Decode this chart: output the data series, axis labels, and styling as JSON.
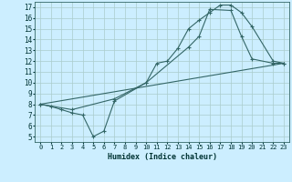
{
  "xlabel": "Humidex (Indice chaleur)",
  "bg_color": "#cceeff",
  "line_color": "#336666",
  "grid_color": "#aacccc",
  "xlim": [
    -0.5,
    23.5
  ],
  "ylim": [
    4.5,
    17.5
  ],
  "xticks": [
    0,
    1,
    2,
    3,
    4,
    5,
    6,
    7,
    8,
    9,
    10,
    11,
    12,
    13,
    14,
    15,
    16,
    17,
    18,
    19,
    20,
    21,
    22,
    23
  ],
  "yticks": [
    5,
    6,
    7,
    8,
    9,
    10,
    11,
    12,
    13,
    14,
    15,
    16,
    17
  ],
  "curve1_x": [
    0,
    1,
    2,
    3,
    4,
    5,
    6,
    7,
    10,
    11,
    12,
    13,
    14,
    15,
    16,
    17,
    18,
    19,
    20,
    22,
    23
  ],
  "curve1_y": [
    8.0,
    7.8,
    7.5,
    7.2,
    7.0,
    5.0,
    5.5,
    8.3,
    10.0,
    11.8,
    12.0,
    13.2,
    15.0,
    15.8,
    16.5,
    17.2,
    17.2,
    16.5,
    15.2,
    12.0,
    11.8
  ],
  "curve2_x": [
    0,
    3,
    7,
    10,
    14,
    15,
    16,
    18,
    19,
    20,
    22,
    23
  ],
  "curve2_y": [
    8.0,
    7.5,
    8.5,
    10.0,
    13.3,
    14.3,
    16.8,
    16.7,
    14.3,
    12.2,
    11.8,
    11.8
  ],
  "curve3_x": [
    0,
    23
  ],
  "curve3_y": [
    8.0,
    11.8
  ]
}
